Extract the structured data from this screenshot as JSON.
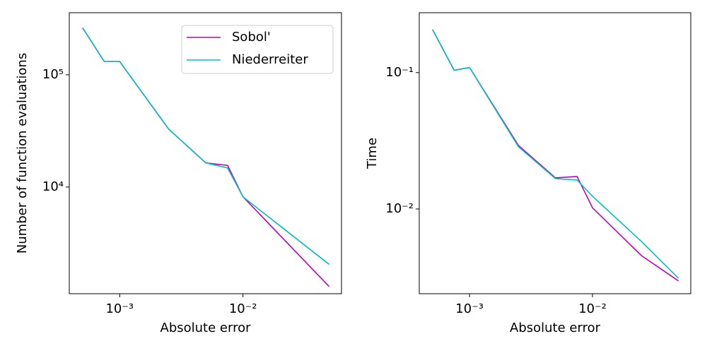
{
  "chart_data": [
    {
      "type": "line",
      "xlabel": "Absolute error",
      "ylabel": "Number of function evaluations",
      "x": [
        0.0005,
        0.00075,
        0.001,
        0.0025,
        0.005,
        0.0075,
        0.01,
        0.05
      ],
      "series": [
        {
          "name": "Sobol'",
          "color": "#bf00bf",
          "values": [
            262144,
            131072,
            131072,
            32768,
            16384,
            15600,
            8192,
            1300
          ]
        },
        {
          "name": "Niederreiter",
          "color": "#00bfbf",
          "values": [
            262144,
            131072,
            131072,
            32768,
            16384,
            14800,
            8192,
            2048
          ]
        }
      ],
      "xscale": "log",
      "yscale": "log",
      "xlim": [
        0.00039,
        0.063
      ],
      "ylim": [
        1122,
        357000
      ],
      "xticks": [
        {
          "value": 0.001,
          "label": "10⁻³"
        },
        {
          "value": 0.01,
          "label": "10⁻²"
        }
      ],
      "yticks": [
        {
          "value": 10000,
          "label": "10⁴"
        },
        {
          "value": 100000,
          "label": "10⁵"
        }
      ],
      "legend": "upper right"
    },
    {
      "type": "line",
      "xlabel": "Absolute error",
      "ylabel": "Time",
      "x": [
        0.0005,
        0.00075,
        0.001,
        0.0025,
        0.005,
        0.0075,
        0.01,
        0.025,
        0.05
      ],
      "series": [
        {
          "color": "#bf00bf",
          "values": [
            0.207,
            0.104,
            0.109,
            0.0292,
            0.0169,
            0.0173,
            0.0102,
            0.00455,
            0.00297
          ]
        },
        {
          "color": "#00bfbf",
          "values": [
            0.207,
            0.104,
            0.109,
            0.0286,
            0.0167,
            0.0163,
            0.0124,
            0.00578,
            0.0031
          ]
        }
      ],
      "xscale": "log",
      "yscale": "log",
      "xlim": [
        0.00039,
        0.063
      ],
      "ylim": [
        0.00239,
        0.275
      ],
      "xticks": [
        {
          "value": 0.001,
          "label": "10⁻³"
        },
        {
          "value": 0.01,
          "label": "10⁻²"
        }
      ],
      "yticks": [
        {
          "value": 0.01,
          "label": "10⁻²"
        },
        {
          "value": 0.1,
          "label": "10⁻¹"
        }
      ]
    }
  ]
}
